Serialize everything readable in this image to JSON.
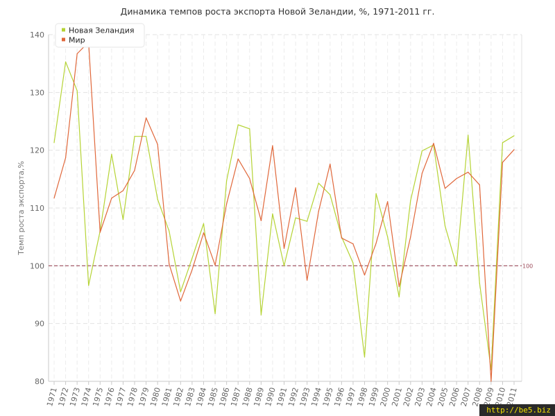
{
  "chart_data": {
    "type": "line",
    "title": "Динамика темпов роста экспорта Новой Зеландии, %, 1971-2011 гг.",
    "xlabel": "",
    "ylabel": "Темп роста экспорта,%",
    "ylim": [
      80,
      140
    ],
    "y_ticks": [
      80,
      90,
      100,
      110,
      120,
      130,
      140
    ],
    "grid": true,
    "legend_position": "top-left",
    "categories": [
      "1971",
      "1972",
      "1973",
      "1974",
      "1975",
      "1976",
      "1977",
      "1978",
      "1979",
      "1980",
      "1981",
      "1982",
      "1983",
      "1984",
      "1985",
      "1986",
      "1987",
      "1988",
      "1989",
      "1990",
      "1991",
      "1992",
      "1993",
      "1994",
      "1995",
      "1996",
      "1997",
      "1998",
      "1999",
      "2000",
      "2001",
      "2002",
      "2003",
      "2004",
      "2005",
      "2006",
      "2007",
      "2008",
      "2009",
      "2010",
      "2011"
    ],
    "series": [
      {
        "name": "Новая Зеландия",
        "color": "#b5d334",
        "values": [
          121.3,
          135.3,
          130.3,
          96.6,
          106.0,
          119.3,
          108.0,
          122.4,
          122.4,
          111.5,
          106.0,
          95.5,
          101.3,
          107.3,
          91.7,
          114.7,
          124.4,
          123.7,
          91.5,
          109.0,
          100.0,
          108.3,
          107.7,
          114.3,
          112.3,
          105.0,
          100.5,
          84.2,
          112.5,
          105.0,
          94.6,
          111.3,
          119.9,
          120.9,
          106.9,
          100.0,
          122.6,
          97.0,
          82.0,
          121.3,
          122.5
        ]
      },
      {
        "name": "Мир",
        "color": "#e0673a",
        "values": [
          111.7,
          118.7,
          136.7,
          138.7,
          105.8,
          111.7,
          113.0,
          116.5,
          125.6,
          121.0,
          100.3,
          93.9,
          99.3,
          105.7,
          100.1,
          110.7,
          118.5,
          115.1,
          107.8,
          120.8,
          103.0,
          113.5,
          97.5,
          109.4,
          117.6,
          104.8,
          103.8,
          98.4,
          103.9,
          111.1,
          96.4,
          105.0,
          116.0,
          121.2,
          113.4,
          115.1,
          116.2,
          114.0,
          80.0,
          117.9,
          120.1
        ]
      }
    ],
    "reference_line": {
      "value": 100,
      "label": "100",
      "color": "#9c4a5a"
    }
  },
  "watermark": "http://be5.biz"
}
